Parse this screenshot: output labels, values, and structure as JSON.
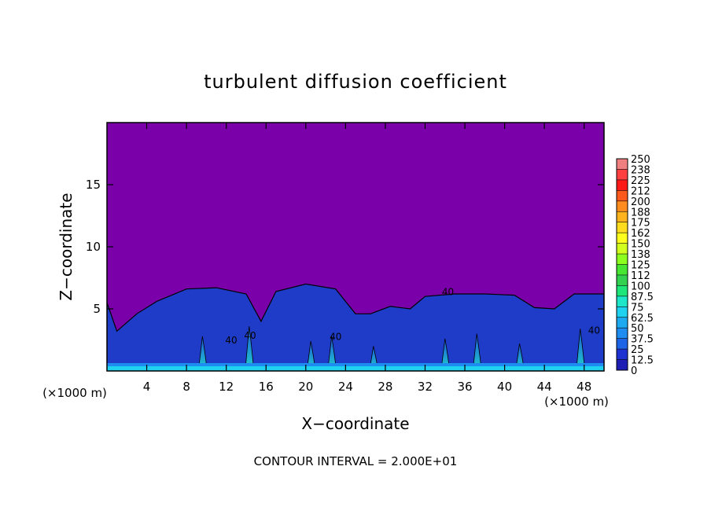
{
  "chart_data": {
    "type": "heatmap",
    "title": "turbulent diffusion coefficient",
    "xlabel": "X−coordinate",
    "ylabel": "Z−coordinate",
    "x_unit_label": "(×1000 m)",
    "xlim": [
      0,
      50
    ],
    "ylim": [
      0,
      20
    ],
    "x_ticks": [
      4,
      8,
      12,
      16,
      20,
      24,
      28,
      32,
      36,
      40,
      44,
      48
    ],
    "y_ticks": [
      5,
      10,
      15
    ],
    "contour_interval_text": "CONTOUR INTERVAL = 2.000E+01",
    "contour_labels": [
      {
        "x": 12.5,
        "z": 2.2,
        "text": "40"
      },
      {
        "x": 14.4,
        "z": 2.6,
        "text": "40"
      },
      {
        "x": 23.0,
        "z": 2.5,
        "text": "40"
      },
      {
        "x": 34.3,
        "z": 6.1,
        "text": "40"
      },
      {
        "x": 49.0,
        "z": 3.0,
        "text": "40"
      }
    ],
    "colorbar": {
      "labels": [
        "250",
        "238",
        "225",
        "212",
        "200",
        "188",
        "175",
        "162",
        "150",
        "138",
        "125",
        "112",
        "100",
        "87.5",
        "75",
        "62.5",
        "50",
        "37.5",
        "25",
        "12.5",
        "0"
      ],
      "colors": [
        "#f08080",
        "#ff4040",
        "#ff1a1a",
        "#ff5a1e",
        "#ff8c1e",
        "#ffb41e",
        "#ffdc1e",
        "#ffff1e",
        "#d2ff1e",
        "#8cff1e",
        "#46e632",
        "#32d250",
        "#1ee678",
        "#1ee6c8",
        "#1ed2f0",
        "#1eaaf0",
        "#1e8cf0",
        "#1e64e6",
        "#1e32d2",
        "#1e1eb4"
      ],
      "background_color": "#7a00aa"
    },
    "turbulent_layer": {
      "top_height_by_x": [
        [
          0,
          5.5
        ],
        [
          1,
          3.2
        ],
        [
          3,
          4.6
        ],
        [
          5,
          5.6
        ],
        [
          8,
          6.6
        ],
        [
          11,
          6.7
        ],
        [
          14,
          6.2
        ],
        [
          15.5,
          4.0
        ],
        [
          17,
          6.4
        ],
        [
          20,
          7.0
        ],
        [
          23,
          6.6
        ],
        [
          25,
          4.6
        ],
        [
          26.5,
          4.6
        ],
        [
          28.5,
          5.2
        ],
        [
          30.5,
          5.0
        ],
        [
          32,
          6.0
        ],
        [
          35,
          6.2
        ],
        [
          38,
          6.2
        ],
        [
          41,
          6.1
        ],
        [
          43,
          5.1
        ],
        [
          45,
          5.0
        ],
        [
          47,
          6.2
        ],
        [
          50,
          6.2
        ]
      ]
    }
  }
}
